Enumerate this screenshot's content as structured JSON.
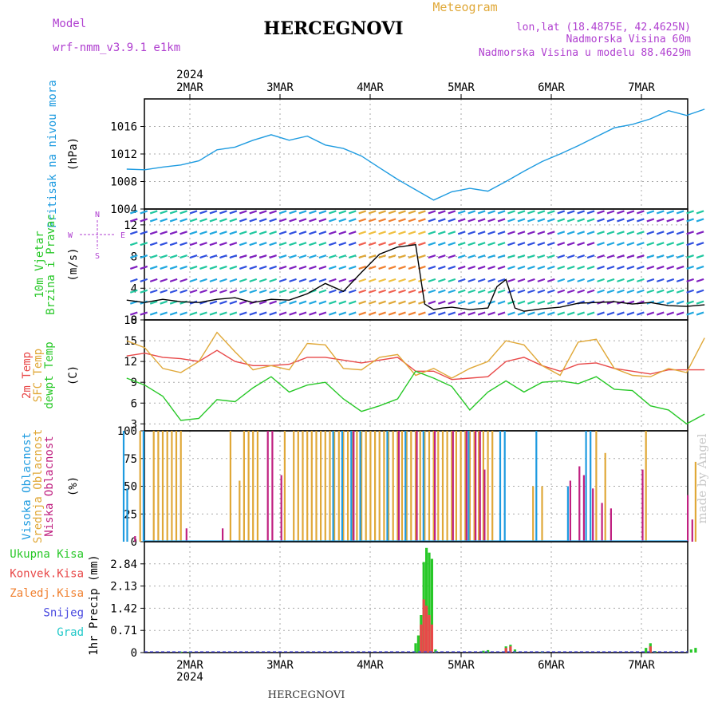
{
  "header": {
    "model_label": "Model",
    "model_name": "wrf-nmm_v3.9.1  e1km",
    "title": "HERCEGNOVI",
    "meteogram_label": "Meteogram",
    "lonlat": "lon,lat (18.4875E, 42.4625N)",
    "altitude": "Nadmorska Visina 60m",
    "model_altitude": "Nadmorska Visina u modelu 88.4629m",
    "year_top": "2024",
    "year_bottom": "2024",
    "footer": "HERCEGNOVI",
    "credit": "made by Angel"
  },
  "colors": {
    "pressure": "#1e9be0",
    "temp2m": "#e84848",
    "sfc": "#e0a838",
    "dewpt": "#28c828",
    "high_cloud": "#1e9be0",
    "mid_cloud": "#e0a838",
    "low_cloud": "#c02080",
    "total_precip": "#28c828",
    "conv_precip": "#e84848",
    "frozen_precip": "#f08030",
    "snow": "#4848e0",
    "grad": "#20c8c8",
    "model_text": "#b040d0",
    "meteogram_text": "#e0a838"
  },
  "chart_data": [
    {
      "type": "line",
      "panel": "pressure",
      "x_categories": [
        "2MAR",
        "3MAR",
        "4MAR",
        "5MAR",
        "6MAR",
        "7MAR"
      ],
      "ylabel": [
        "Pritisak na nivou mora",
        "(hPa)"
      ],
      "ylim": [
        1004,
        1020
      ],
      "yticks": [
        1004,
        1008,
        1012,
        1016
      ],
      "grid": true,
      "series": [
        {
          "name": "Pritisak na nivou mora",
          "x": [
            -0.7,
            -0.5,
            -0.3,
            -0.1,
            0.1,
            0.3,
            0.5,
            0.7,
            0.9,
            1.1,
            1.3,
            1.5,
            1.7,
            1.9,
            2.1,
            2.3,
            2.5,
            2.7,
            2.9,
            3.1,
            3.3,
            3.5,
            3.7,
            3.9,
            4.1,
            4.3,
            4.5,
            4.7,
            4.9,
            5.1,
            5.3,
            5.5,
            5.7
          ],
          "y": [
            1009.8,
            1009.7,
            1010.1,
            1010.4,
            1011.0,
            1012.6,
            1013.0,
            1014.0,
            1014.8,
            1014.0,
            1014.6,
            1013.3,
            1012.8,
            1011.7,
            1010.0,
            1008.3,
            1006.8,
            1005.3,
            1006.5,
            1007.0,
            1006.6,
            1008.0,
            1009.5,
            1010.9,
            1012.0,
            1013.2,
            1014.5,
            1015.8,
            1016.3,
            1017.1,
            1018.3,
            1017.6,
            1018.5
          ]
        }
      ]
    },
    {
      "type": "line",
      "panel": "wind",
      "x_categories": [
        "2MAR",
        "3MAR",
        "4MAR",
        "5MAR",
        "6MAR",
        "7MAR"
      ],
      "ylabel": [
        "10m Vjetar",
        "Brzina i Pravac",
        "(m/s)"
      ],
      "compass_labels": [
        "N",
        "W",
        "E",
        "S"
      ],
      "ylim": [
        0,
        14
      ],
      "yticks": [
        0,
        4,
        8,
        12
      ],
      "grid": true,
      "series": [
        {
          "name": "10m Vjetar Brzina",
          "x": [
            -0.7,
            -0.5,
            -0.3,
            -0.1,
            0.1,
            0.3,
            0.5,
            0.7,
            0.9,
            1.1,
            1.3,
            1.5,
            1.7,
            1.9,
            2.1,
            2.3,
            2.5,
            2.6,
            2.7,
            2.8,
            2.9,
            3.1,
            3.3,
            3.4,
            3.5,
            3.6,
            3.7,
            3.9,
            4.1,
            4.3,
            4.5,
            4.7,
            4.9,
            5.1,
            5.3,
            5.5,
            5.7
          ],
          "y": [
            2.5,
            2.2,
            2.6,
            2.3,
            2.2,
            2.6,
            2.8,
            2.2,
            2.6,
            2.5,
            3.3,
            4.6,
            3.6,
            6.0,
            8.3,
            9.2,
            9.5,
            2.0,
            1.3,
            1.5,
            1.6,
            1.3,
            1.5,
            4.2,
            5.1,
            1.5,
            1.1,
            1.4,
            1.6,
            2.1,
            2.2,
            2.3,
            2.0,
            2.2,
            1.8,
            1.7,
            1.9
          ]
        }
      ]
    },
    {
      "type": "line",
      "panel": "temperature",
      "x_categories": [
        "2MAR",
        "3MAR",
        "4MAR",
        "5MAR",
        "6MAR",
        "7MAR"
      ],
      "ylabel": [
        "2m Temp",
        "SFC Temp",
        "dewpt Temp",
        "(C)"
      ],
      "ylim": [
        2,
        18
      ],
      "yticks": [
        3,
        6,
        9,
        12,
        15,
        18
      ],
      "grid": true,
      "series": [
        {
          "name": "2m Temp",
          "x": [
            -0.7,
            -0.5,
            -0.3,
            -0.1,
            0.1,
            0.3,
            0.5,
            0.7,
            0.9,
            1.1,
            1.3,
            1.5,
            1.7,
            1.9,
            2.1,
            2.3,
            2.5,
            2.7,
            2.9,
            3.1,
            3.3,
            3.5,
            3.7,
            3.9,
            4.1,
            4.3,
            4.5,
            4.7,
            4.9,
            5.1,
            5.3,
            5.5,
            5.7
          ],
          "y": [
            12.8,
            13.2,
            12.6,
            12.4,
            12.0,
            13.6,
            12.0,
            11.4,
            11.4,
            11.6,
            12.6,
            12.6,
            12.2,
            11.8,
            12.2,
            12.6,
            10.6,
            10.6,
            9.4,
            9.6,
            9.8,
            12.0,
            12.6,
            11.4,
            10.6,
            11.6,
            11.8,
            11.0,
            10.6,
            10.2,
            10.8,
            10.8,
            10.8
          ]
        },
        {
          "name": "SFC Temp",
          "x": [
            -0.7,
            -0.5,
            -0.3,
            -0.1,
            0.1,
            0.3,
            0.5,
            0.7,
            0.9,
            1.1,
            1.3,
            1.5,
            1.7,
            1.9,
            2.1,
            2.3,
            2.5,
            2.7,
            2.9,
            3.1,
            3.3,
            3.5,
            3.7,
            3.9,
            4.1,
            4.3,
            4.5,
            4.7,
            4.9,
            5.1,
            5.3,
            5.5,
            5.7
          ],
          "y": [
            15.0,
            14.0,
            11.0,
            10.4,
            12.0,
            16.2,
            13.4,
            10.8,
            11.4,
            10.8,
            14.6,
            14.4,
            11.0,
            10.8,
            12.6,
            13.0,
            10.0,
            11.0,
            9.6,
            11.0,
            12.0,
            15.0,
            14.4,
            11.4,
            10.0,
            14.8,
            15.2,
            11.0,
            10.0,
            9.8,
            11.0,
            10.4,
            15.4
          ]
        },
        {
          "name": "dewpt Temp",
          "x": [
            -0.7,
            -0.5,
            -0.3,
            -0.1,
            0.1,
            0.3,
            0.5,
            0.7,
            0.9,
            1.1,
            1.3,
            1.5,
            1.7,
            1.9,
            2.1,
            2.3,
            2.5,
            2.7,
            2.9,
            3.1,
            3.3,
            3.5,
            3.7,
            3.9,
            4.1,
            4.3,
            4.5,
            4.7,
            4.9,
            5.1,
            5.3,
            5.5,
            5.7
          ],
          "y": [
            9.6,
            8.6,
            7.0,
            3.5,
            3.8,
            6.5,
            6.2,
            8.2,
            9.8,
            7.6,
            8.6,
            9.0,
            6.6,
            4.8,
            5.6,
            6.6,
            10.6,
            9.6,
            8.4,
            5.0,
            7.6,
            9.2,
            7.6,
            9.0,
            9.2,
            8.8,
            9.8,
            8.0,
            7.8,
            5.6,
            5.0,
            3.0,
            4.4
          ]
        }
      ]
    },
    {
      "type": "bar",
      "panel": "cloud",
      "x_categories": [
        "2MAR",
        "3MAR",
        "4MAR",
        "5MAR",
        "6MAR",
        "7MAR"
      ],
      "ylabel": [
        "Visoka Oblacnost",
        "Srednja Oblacnost",
        "Niska Oblacnost",
        "(%)"
      ],
      "ylim": [
        0,
        100
      ],
      "yticks": [
        0,
        25,
        50,
        75,
        100
      ],
      "grid": true,
      "series": [
        {
          "name": "Visoka Oblacnost",
          "x": [
            -0.72,
            -0.68,
            -0.5,
            1.6,
            1.7,
            1.8,
            1.9,
            2.2,
            2.4,
            2.6,
            3.1,
            3.45,
            3.5,
            3.85,
            4.2,
            4.4,
            4.45
          ],
          "y": [
            100,
            48,
            100,
            100,
            100,
            100,
            100,
            100,
            100,
            100,
            100,
            100,
            100,
            100,
            50,
            100,
            100
          ]
        },
        {
          "name": "Srednja Oblacnost",
          "x": [
            -0.55,
            -0.4,
            -0.35,
            -0.3,
            -0.25,
            -0.2,
            -0.15,
            -0.1,
            0.45,
            0.55,
            0.6,
            0.65,
            0.7,
            0.75,
            1.05,
            1.15,
            1.2,
            1.25,
            1.3,
            1.35,
            1.4,
            1.45,
            1.5,
            1.55,
            1.6,
            1.65,
            1.7,
            1.75,
            1.8,
            1.85,
            1.9,
            1.95,
            2.0,
            2.05,
            2.1,
            2.15,
            2.2,
            2.25,
            2.3,
            2.35,
            2.4,
            2.45,
            2.5,
            2.55,
            2.6,
            2.65,
            2.7,
            2.75,
            2.8,
            2.85,
            2.9,
            2.95,
            3.0,
            3.05,
            3.1,
            3.15,
            3.2,
            3.25,
            3.3,
            3.35,
            3.8,
            3.9,
            4.5,
            4.6,
            5.05,
            5.6
          ],
          "y": [
            100,
            100,
            100,
            100,
            100,
            100,
            100,
            100,
            100,
            55,
            100,
            100,
            100,
            100,
            100,
            100,
            100,
            100,
            100,
            100,
            100,
            100,
            100,
            100,
            100,
            100,
            100,
            100,
            100,
            100,
            100,
            100,
            100,
            100,
            100,
            100,
            100,
            100,
            100,
            100,
            100,
            100,
            100,
            100,
            100,
            100,
            100,
            100,
            100,
            100,
            100,
            100,
            100,
            100,
            100,
            100,
            100,
            100,
            100,
            100,
            50,
            50,
            100,
            80,
            100,
            72
          ]
        },
        {
          "name": "Niska Oblacnost",
          "x": [
            -0.62,
            -0.05,
            0.35,
            0.85,
            0.9,
            1.0,
            1.8,
            2.3,
            2.5,
            2.7,
            2.9,
            3.05,
            3.15,
            3.2,
            3.25,
            4.2,
            4.3,
            4.35,
            4.45,
            4.55,
            4.65,
            5.0,
            5.5,
            5.55
          ],
          "y": [
            5,
            12,
            12,
            100,
            100,
            60,
            100,
            100,
            100,
            100,
            100,
            100,
            100,
            100,
            65,
            55,
            68,
            60,
            48,
            35,
            30,
            65,
            42,
            20
          ]
        }
      ]
    },
    {
      "type": "bar",
      "panel": "precip",
      "x_categories": [
        "2MAR",
        "3MAR",
        "4MAR",
        "5MAR",
        "6MAR",
        "7MAR"
      ],
      "ylabel": [
        "Ukupna Kisa",
        "Konvek.Kisa",
        "Zaledj.Kisa",
        "Snijeg",
        "Grad",
        "1hr Precip (mm)"
      ],
      "ylim": [
        0,
        3.55
      ],
      "yticks": [
        0,
        0.71,
        1.42,
        2.13,
        2.84
      ],
      "grid": true,
      "series": [
        {
          "name": "Ukupna Kisa",
          "x": [
            -0.1,
            0.0,
            2.5,
            2.53,
            2.56,
            2.59,
            2.62,
            2.65,
            2.68,
            2.72,
            3.25,
            3.3,
            3.5,
            3.55,
            3.6,
            3.9,
            5.05,
            5.1,
            5.15,
            5.55,
            5.6
          ],
          "y": [
            0.03,
            0.03,
            0.3,
            0.55,
            1.2,
            2.9,
            3.35,
            3.2,
            3.0,
            0.1,
            0.06,
            0.08,
            0.2,
            0.25,
            0.1,
            0.04,
            0.15,
            0.3,
            0.05,
            0.1,
            0.15
          ]
        },
        {
          "name": "Konvek.Kisa",
          "x": [
            2.56,
            2.59,
            2.62,
            2.65,
            2.68,
            3.5,
            3.55,
            5.1
          ],
          "y": [
            0.9,
            1.7,
            1.5,
            1.2,
            0.9,
            0.15,
            0.2,
            0.2
          ]
        }
      ]
    }
  ]
}
